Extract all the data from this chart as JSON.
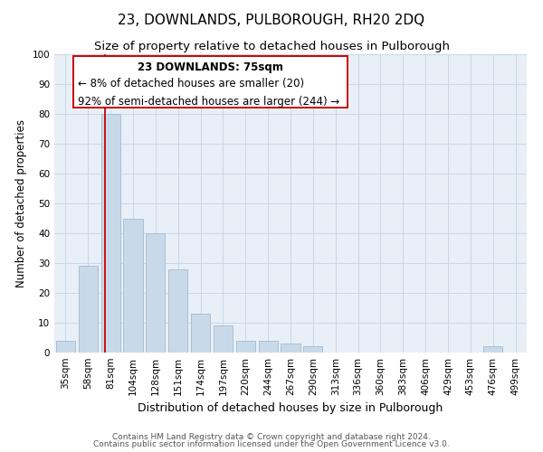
{
  "title": "23, DOWNLANDS, PULBOROUGH, RH20 2DQ",
  "subtitle": "Size of property relative to detached houses in Pulborough",
  "xlabel": "Distribution of detached houses by size in Pulborough",
  "ylabel": "Number of detached properties",
  "footer_line1": "Contains HM Land Registry data © Crown copyright and database right 2024.",
  "footer_line2": "Contains public sector information licensed under the Open Government Licence v3.0.",
  "annotation_line1": "23 DOWNLANDS: 75sqm",
  "annotation_line2": "← 8% of detached houses are smaller (20)",
  "annotation_line3": "92% of semi-detached houses are larger (244) →",
  "bar_categories": [
    "35sqm",
    "58sqm",
    "81sqm",
    "104sqm",
    "128sqm",
    "151sqm",
    "174sqm",
    "197sqm",
    "220sqm",
    "244sqm",
    "267sqm",
    "290sqm",
    "313sqm",
    "336sqm",
    "360sqm",
    "383sqm",
    "406sqm",
    "429sqm",
    "453sqm",
    "476sqm",
    "499sqm"
  ],
  "bar_values": [
    4,
    29,
    80,
    45,
    40,
    28,
    13,
    9,
    4,
    4,
    3,
    2,
    0,
    0,
    0,
    0,
    0,
    0,
    0,
    2,
    0
  ],
  "bar_color": "#c8daea",
  "bar_edge_color": "#aabfd4",
  "grid_color": "#c8d8e8",
  "background_color": "#e8eff6",
  "ref_line_color": "#cc0000",
  "annotation_box_color": "#cc0000",
  "ylim": [
    0,
    100
  ],
  "title_fontsize": 11,
  "subtitle_fontsize": 9.5,
  "xlabel_fontsize": 9,
  "ylabel_fontsize": 8.5,
  "tick_fontsize": 7.5,
  "annotation_fontsize": 8.5,
  "footer_fontsize": 6.5
}
